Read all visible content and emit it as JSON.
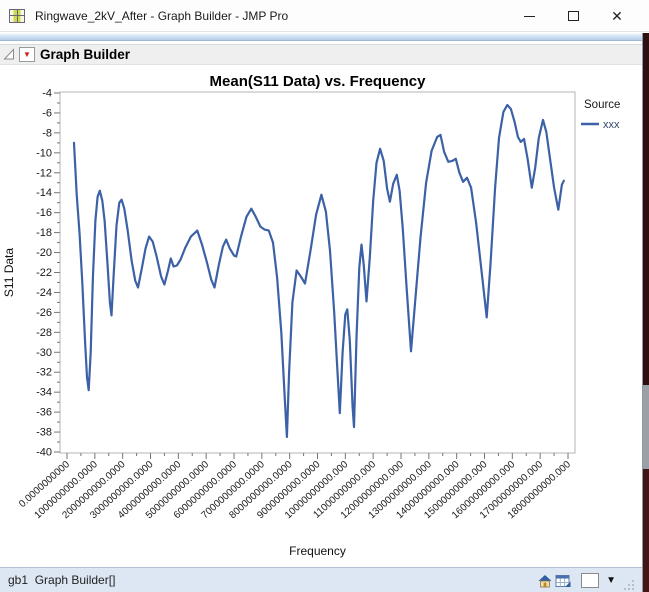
{
  "window": {
    "title": "Ringwave_2kV_After - Graph Builder - JMP Pro",
    "icons": {
      "minimize": "─",
      "maximize": "▭",
      "close": "✕"
    }
  },
  "outline": {
    "title": "Graph Builder",
    "red_triangle_glyph": "▼"
  },
  "status_bar": {
    "left": "gb1  Graph Builder[]",
    "dropdown_glyph": "▼"
  },
  "colors": {
    "line": "#3c61a6",
    "frame": "#b6b6b6",
    "tick": "#757575",
    "label": "#1a1a1a",
    "legend_entry_text": "#2e4668"
  },
  "chart_data": {
    "type": "line",
    "title": "Mean(S11 Data) vs. Frequency",
    "xlabel": "Frequency",
    "ylabel": "S11 Data",
    "ylim": [
      -40,
      -4
    ],
    "y_ticks": [
      -4,
      -6,
      -8,
      -10,
      -12,
      -14,
      -16,
      -18,
      -20,
      -22,
      -24,
      -26,
      -28,
      -30,
      -32,
      -34,
      -36,
      -38,
      -40
    ],
    "xlim_ghz": [
      0,
      18
    ],
    "x_tick_labels": [
      "0.0000000000",
      "1000000000.0000",
      "2000000000.0000",
      "3000000000.0000",
      "4000000000.0000",
      "5000000000.0000",
      "6000000000.0000",
      "7000000000.0000",
      "8000000000.0000",
      "9000000000.0000",
      "10000000000.000",
      "11000000000.000",
      "12000000000.000",
      "13000000000.000",
      "14000000000.000",
      "15000000000.000",
      "16000000000.000",
      "17000000000.000",
      "18000000000.000"
    ],
    "grid": false,
    "legend": {
      "position": "right",
      "title": "Source",
      "entries": [
        {
          "label": "xxx",
          "color": "#3c61a6"
        }
      ]
    },
    "series": [
      {
        "name": "xxx",
        "color": "#3c61a6",
        "points_ghz": [
          [
            0.25,
            -9.0
          ],
          [
            0.3,
            -11.5
          ],
          [
            0.35,
            -14.2
          ],
          [
            0.45,
            -18.0
          ],
          [
            0.55,
            -23.0
          ],
          [
            0.65,
            -29.0
          ],
          [
            0.72,
            -32.5
          ],
          [
            0.78,
            -33.8
          ],
          [
            0.85,
            -30.0
          ],
          [
            0.93,
            -22.5
          ],
          [
            1.02,
            -16.8
          ],
          [
            1.1,
            -14.4
          ],
          [
            1.18,
            -13.8
          ],
          [
            1.27,
            -14.8
          ],
          [
            1.35,
            -16.8
          ],
          [
            1.45,
            -21.0
          ],
          [
            1.54,
            -25.0
          ],
          [
            1.6,
            -26.3
          ],
          [
            1.68,
            -22.0
          ],
          [
            1.78,
            -17.3
          ],
          [
            1.88,
            -15.0
          ],
          [
            1.96,
            -14.7
          ],
          [
            2.06,
            -15.6
          ],
          [
            2.18,
            -17.8
          ],
          [
            2.32,
            -20.8
          ],
          [
            2.45,
            -22.8
          ],
          [
            2.55,
            -23.5
          ],
          [
            2.68,
            -21.7
          ],
          [
            2.82,
            -19.6
          ],
          [
            2.95,
            -18.4
          ],
          [
            3.08,
            -18.9
          ],
          [
            3.22,
            -20.4
          ],
          [
            3.38,
            -22.4
          ],
          [
            3.5,
            -23.2
          ],
          [
            3.62,
            -21.9
          ],
          [
            3.73,
            -20.6
          ],
          [
            3.83,
            -21.4
          ],
          [
            3.95,
            -21.3
          ],
          [
            4.08,
            -20.7
          ],
          [
            4.25,
            -19.5
          ],
          [
            4.45,
            -18.4
          ],
          [
            4.68,
            -17.8
          ],
          [
            4.85,
            -19.2
          ],
          [
            5.02,
            -20.9
          ],
          [
            5.18,
            -22.7
          ],
          [
            5.3,
            -23.5
          ],
          [
            5.45,
            -21.3
          ],
          [
            5.6,
            -19.4
          ],
          [
            5.72,
            -18.7
          ],
          [
            5.85,
            -19.6
          ],
          [
            6.0,
            -20.3
          ],
          [
            6.08,
            -20.4
          ],
          [
            6.25,
            -18.4
          ],
          [
            6.45,
            -16.4
          ],
          [
            6.62,
            -15.6
          ],
          [
            6.78,
            -16.4
          ],
          [
            6.95,
            -17.4
          ],
          [
            7.1,
            -17.7
          ],
          [
            7.25,
            -17.8
          ],
          [
            7.4,
            -19.0
          ],
          [
            7.55,
            -22.5
          ],
          [
            7.7,
            -28.0
          ],
          [
            7.82,
            -34.5
          ],
          [
            7.9,
            -38.5
          ],
          [
            7.98,
            -32.0
          ],
          [
            8.1,
            -25.0
          ],
          [
            8.25,
            -21.8
          ],
          [
            8.4,
            -22.4
          ],
          [
            8.55,
            -23.1
          ],
          [
            8.75,
            -19.8
          ],
          [
            8.95,
            -16.2
          ],
          [
            9.14,
            -14.2
          ],
          [
            9.3,
            -15.9
          ],
          [
            9.45,
            -19.8
          ],
          [
            9.6,
            -26.0
          ],
          [
            9.72,
            -32.0
          ],
          [
            9.8,
            -36.1
          ],
          [
            9.9,
            -30.0
          ],
          [
            10.0,
            -26.2
          ],
          [
            10.07,
            -25.7
          ],
          [
            10.16,
            -28.8
          ],
          [
            10.26,
            -35.5
          ],
          [
            10.31,
            -37.5
          ],
          [
            10.4,
            -28.5
          ],
          [
            10.5,
            -21.5
          ],
          [
            10.58,
            -19.2
          ],
          [
            10.66,
            -21.2
          ],
          [
            10.76,
            -24.9
          ],
          [
            10.88,
            -20.5
          ],
          [
            11.0,
            -14.8
          ],
          [
            11.12,
            -11.0
          ],
          [
            11.25,
            -9.6
          ],
          [
            11.38,
            -10.8
          ],
          [
            11.5,
            -13.6
          ],
          [
            11.6,
            -14.9
          ],
          [
            11.72,
            -13.1
          ],
          [
            11.85,
            -12.2
          ],
          [
            11.95,
            -13.8
          ],
          [
            12.06,
            -17.5
          ],
          [
            12.2,
            -23.5
          ],
          [
            12.36,
            -29.9
          ],
          [
            12.52,
            -24.5
          ],
          [
            12.7,
            -18.5
          ],
          [
            12.9,
            -13.0
          ],
          [
            13.1,
            -9.8
          ],
          [
            13.3,
            -8.4
          ],
          [
            13.42,
            -8.2
          ],
          [
            13.55,
            -9.9
          ],
          [
            13.7,
            -10.9
          ],
          [
            13.85,
            -10.8
          ],
          [
            13.97,
            -10.6
          ],
          [
            14.1,
            -12.0
          ],
          [
            14.23,
            -12.9
          ],
          [
            14.37,
            -12.5
          ],
          [
            14.52,
            -13.5
          ],
          [
            14.7,
            -17.0
          ],
          [
            14.9,
            -22.0
          ],
          [
            15.08,
            -26.5
          ],
          [
            15.22,
            -21.0
          ],
          [
            15.38,
            -13.5
          ],
          [
            15.52,
            -8.5
          ],
          [
            15.68,
            -5.9
          ],
          [
            15.82,
            -5.2
          ],
          [
            15.95,
            -5.6
          ],
          [
            16.08,
            -6.9
          ],
          [
            16.2,
            -8.4
          ],
          [
            16.3,
            -8.9
          ],
          [
            16.42,
            -8.6
          ],
          [
            16.55,
            -10.6
          ],
          [
            16.7,
            -13.5
          ],
          [
            16.82,
            -11.5
          ],
          [
            16.95,
            -8.5
          ],
          [
            17.1,
            -6.7
          ],
          [
            17.22,
            -7.9
          ],
          [
            17.35,
            -10.5
          ],
          [
            17.5,
            -13.5
          ],
          [
            17.65,
            -15.7
          ],
          [
            17.78,
            -13.2
          ],
          [
            17.85,
            -12.8
          ]
        ]
      }
    ]
  }
}
